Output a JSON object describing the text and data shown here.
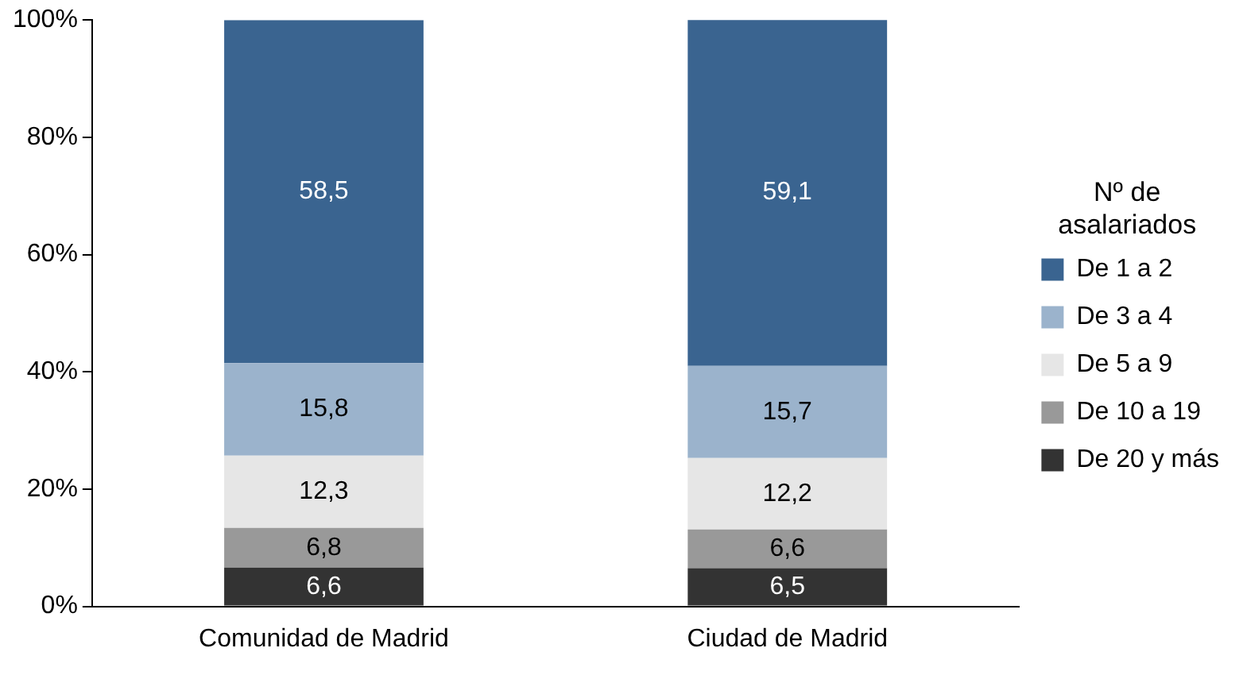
{
  "chart_data": {
    "type": "bar",
    "stacked": true,
    "legend_title": "Nº de asalariados",
    "legend": "right",
    "grid": false,
    "categories": [
      "Comunidad de Madrid",
      "Ciudad de Madrid"
    ],
    "ylim": [
      0,
      100
    ],
    "yticks": [
      {
        "value": 0,
        "label": "0%"
      },
      {
        "value": 20,
        "label": "20%"
      },
      {
        "value": 40,
        "label": "40%"
      },
      {
        "value": 60,
        "label": "60%"
      },
      {
        "value": 80,
        "label": "80%"
      },
      {
        "value": 100,
        "label": "100%"
      }
    ],
    "series": [
      {
        "name": "De 20 y más",
        "color": "#333333",
        "values": [
          6.6,
          6.5
        ],
        "value_labels": [
          "6,6",
          "6,5"
        ]
      },
      {
        "name": "De 10 a 19",
        "color": "#999999",
        "values": [
          6.8,
          6.6
        ],
        "value_labels": [
          "6,8",
          "6,6"
        ]
      },
      {
        "name": "De 5 a 9",
        "color": "#e6e6e6",
        "values": [
          12.3,
          12.2
        ],
        "value_labels": [
          "12,3",
          "12,2"
        ]
      },
      {
        "name": "De 3 a 4",
        "color": "#9bb3cc",
        "values": [
          15.8,
          15.7
        ],
        "value_labels": [
          "15,8",
          "15,7"
        ]
      },
      {
        "name": "De 1 a 2",
        "color": "#3a6490",
        "values": [
          58.5,
          59.1
        ],
        "value_labels": [
          "58,5",
          "59,1"
        ]
      }
    ]
  }
}
